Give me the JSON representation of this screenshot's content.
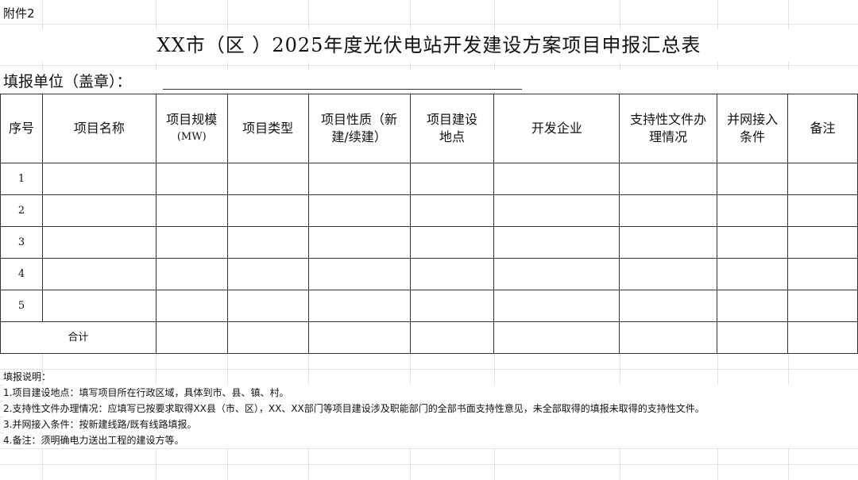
{
  "attachment_label": "附件2",
  "title": "XX市（区 ）2025年度光伏电站开发建设方案项目申报汇总表",
  "filler_label": "填报单位（盖章）：",
  "table": {
    "headers": [
      "序号",
      "项目名称",
      "项目规模",
      "项目类型",
      "项目性质（新建/续建）",
      "项目建设地点",
      "开发企业",
      "支持性文件办理情况",
      "并网接入条件",
      "备注"
    ],
    "header_unit": "(MW)",
    "rows": [
      "1",
      "2",
      "3",
      "4",
      "5"
    ],
    "total_label": "合计"
  },
  "notes": {
    "heading": "填报说明：",
    "items": [
      "1.项目建设地点：填写项目所在行政区域，具体到市、县、镇、村。",
      "2.支持性文件办理情况：应填写已按要求取得XX县（市、区），XX、XX部门等项目建设涉及职能部门的全部书面支持性意见，未全部取得的填报未取得的支持性文件。",
      "3.并网接入条件：按新建线路/既有线路填报。",
      "4.备注：须明确电力送出工程的建设方等。"
    ]
  }
}
